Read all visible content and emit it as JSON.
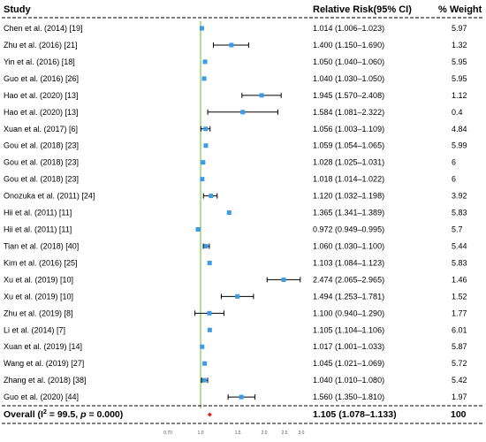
{
  "chart_data": {
    "type": "forest",
    "headers": {
      "study": "Study",
      "effect": "Relative Risk(95% CI)",
      "weight": "% Weight"
    },
    "x_scale": "log",
    "xlim": [
      0.7,
      3.0
    ],
    "x_ticks": [
      "0.70",
      "1.0",
      "1.5",
      "2.0",
      "2.5",
      "3.0"
    ],
    "x_tick_values": [
      0.7,
      1.0,
      1.5,
      2.0,
      2.5,
      3.0
    ],
    "reference_line": 1.0,
    "marker_color": "#3c9be6",
    "reference_line_color": "#66bb33",
    "studies": [
      {
        "study": "Chen et al. (2014) [19]",
        "rr": 1.014,
        "lo": 1.006,
        "hi": 1.023,
        "ci_text": "1.014 (1.006–1.023)",
        "weight": "5.97"
      },
      {
        "study": "Zhu et al. (2016) [21]",
        "rr": 1.4,
        "lo": 1.15,
        "hi": 1.69,
        "ci_text": "1.400 (1.150–1.690)",
        "weight": "1.32"
      },
      {
        "study": "Yin et al. (2016) [18]",
        "rr": 1.05,
        "lo": 1.04,
        "hi": 1.06,
        "ci_text": "1.050 (1.040–1.060)",
        "weight": "5.95"
      },
      {
        "study": "Guo et al. (2016) [26]",
        "rr": 1.04,
        "lo": 1.03,
        "hi": 1.05,
        "ci_text": "1.040 (1.030–1.050)",
        "weight": "5.95"
      },
      {
        "study": "Hao et al. (2020) [13]",
        "rr": 1.945,
        "lo": 1.57,
        "hi": 2.408,
        "ci_text": "1.945 (1.570–2.408)",
        "weight": "1.12"
      },
      {
        "study": "Hao et al. (2020) [13]",
        "rr": 1.584,
        "lo": 1.081,
        "hi": 2.322,
        "ci_text": "1.584 (1.081–2.322)",
        "weight": "0.4"
      },
      {
        "study": "Xuan et al. (2017) [6]",
        "rr": 1.056,
        "lo": 1.003,
        "hi": 1.109,
        "ci_text": "1.056 (1.003–1.109)",
        "weight": "4.84"
      },
      {
        "study": "Gou et al. (2018) [23]",
        "rr": 1.059,
        "lo": 1.054,
        "hi": 1.065,
        "ci_text": "1.059 (1.054–1.065)",
        "weight": "5.99"
      },
      {
        "study": "Gou et al. (2018) [23]",
        "rr": 1.028,
        "lo": 1.025,
        "hi": 1.031,
        "ci_text": "1.028 (1.025–1.031)",
        "weight": "6"
      },
      {
        "study": "Gou et al. (2018) [23]",
        "rr": 1.018,
        "lo": 1.014,
        "hi": 1.022,
        "ci_text": "1.018 (1.014–1.022)",
        "weight": "6"
      },
      {
        "study": "Onozuka et al. (2011) [24]",
        "rr": 1.12,
        "lo": 1.032,
        "hi": 1.198,
        "ci_text": "1.120 (1.032–1.198)",
        "weight": "3.92"
      },
      {
        "study": "Hii et al. (2011) [11]",
        "rr": 1.365,
        "lo": 1.341,
        "hi": 1.389,
        "ci_text": "1.365 (1.341–1.389)",
        "weight": "5.83"
      },
      {
        "study": "Hii et al. (2011) [11]",
        "rr": 0.972,
        "lo": 0.949,
        "hi": 0.995,
        "ci_text": "0.972 (0.949–0.995)",
        "weight": "5.7"
      },
      {
        "study": "Tian et al. (2018) [40]",
        "rr": 1.06,
        "lo": 1.03,
        "hi": 1.1,
        "ci_text": "1.060 (1.030–1.100)",
        "weight": "5.44"
      },
      {
        "study": "Kim et al. (2016) [25]",
        "rr": 1.103,
        "lo": 1.084,
        "hi": 1.123,
        "ci_text": "1.103 (1.084–1.123)",
        "weight": "5.83"
      },
      {
        "study": "Xu et al. (2019) [10]",
        "rr": 2.474,
        "lo": 2.065,
        "hi": 2.965,
        "ci_text": "2.474 (2.065–2.965)",
        "weight": "1.46"
      },
      {
        "study": "Xu et al. (2019) [10]",
        "rr": 1.494,
        "lo": 1.253,
        "hi": 1.781,
        "ci_text": "1.494 (1.253–1.781)",
        "weight": "1.52"
      },
      {
        "study": "Zhu et al. (2019) [8]",
        "rr": 1.1,
        "lo": 0.94,
        "hi": 1.29,
        "ci_text": "1.100 (0.940–1.290)",
        "weight": "1.77"
      },
      {
        "study": "Li et al. (2014) [7]",
        "rr": 1.105,
        "lo": 1.104,
        "hi": 1.106,
        "ci_text": "1.105 (1.104–1.106)",
        "weight": "6.01"
      },
      {
        "study": "Xuan et al. (2019) [14]",
        "rr": 1.017,
        "lo": 1.001,
        "hi": 1.033,
        "ci_text": "1.017 (1.001–1.033)",
        "weight": "5.87"
      },
      {
        "study": "Wang et al. (2019) [27]",
        "rr": 1.045,
        "lo": 1.021,
        "hi": 1.069,
        "ci_text": "1.045 (1.021–1.069)",
        "weight": "5.72"
      },
      {
        "study": "Zhang et al. (2018) [38]",
        "rr": 1.04,
        "lo": 1.01,
        "hi": 1.08,
        "ci_text": "1.040 (1.010–1.080)",
        "weight": "5.42"
      },
      {
        "study": "Guo et al. (2020) [44]",
        "rr": 1.56,
        "lo": 1.35,
        "hi": 1.81,
        "ci_text": "1.560 (1.350–1.810)",
        "weight": "1.97"
      }
    ],
    "overall": {
      "label_prefix": "Overall (I",
      "label_sup": "2",
      "label_mid": " = 99.5, ",
      "label_p": "p",
      "label_suffix": " = 0.000)",
      "rr": 1.105,
      "lo": 1.078,
      "hi": 1.133,
      "ci_text": "1.105 (1.078–1.133)",
      "weight": "100",
      "marker_color": "#dd2222"
    }
  }
}
